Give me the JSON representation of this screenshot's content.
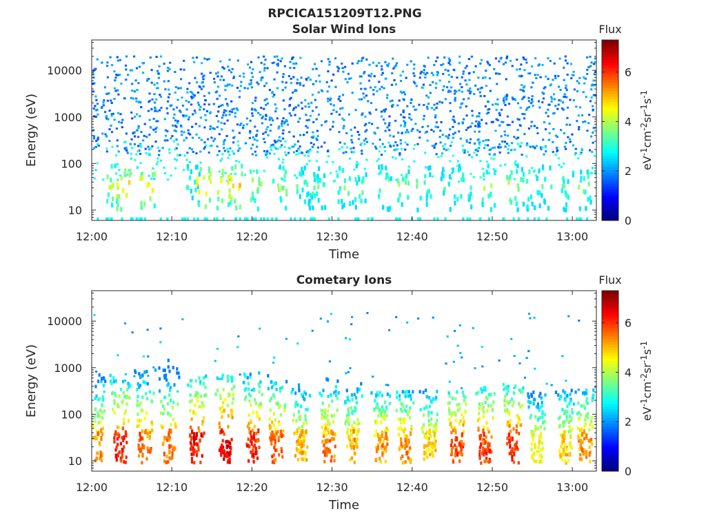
{
  "figure": {
    "title": "RPCICA151209T12.PNG"
  },
  "chart_data": [
    {
      "type": "heatmap",
      "title": "Solar Wind Ions",
      "xlabel": "Time",
      "ylabel": "Energy (eV)",
      "y_scale": "log",
      "ylim": [
        6,
        45000
      ],
      "xlim": [
        "12:00",
        "13:03"
      ],
      "x_ticks": [
        "12:00",
        "12:10",
        "12:20",
        "12:30",
        "12:40",
        "12:50",
        "13:00"
      ],
      "y_ticks": [
        "10",
        "100",
        "1000",
        "10000"
      ],
      "colorbar": {
        "title": "Flux",
        "label": "eV-1cm-2sr-1s-1",
        "range": [
          0,
          7.3
        ],
        "ticks": [
          "0",
          "2",
          "4",
          "6"
        ],
        "colormap": "jet"
      },
      "bursts_min": [
        2,
        3.5,
        6.5,
        12.3,
        13.5,
        16,
        17.5,
        20,
        23,
        26,
        27,
        28,
        31,
        33,
        36,
        38.5,
        41,
        44,
        46,
        49,
        52,
        54,
        56,
        59,
        61
      ],
      "burst_peak_flux": [
        4.5,
        5.3,
        5.0,
        3.5,
        5.2,
        5.0,
        5.3,
        4.6,
        4.2,
        3.8,
        3.6,
        3.9,
        4.0,
        3.8,
        4.0,
        4.3,
        3.8,
        3.7,
        3.8,
        4.3,
        4.5,
        4.2,
        3.5,
        3.9,
        4.0
      ],
      "background": "sparse blue noise between ~150 eV and ~20000 eV, flux ~1.5–2.5"
    },
    {
      "type": "heatmap",
      "title": "Cometary Ions",
      "xlabel": "Time",
      "ylabel": "Energy (eV)",
      "y_scale": "log",
      "ylim": [
        6,
        45000
      ],
      "xlim": [
        "12:00",
        "13:03"
      ],
      "x_ticks": [
        "12:00",
        "12:10",
        "12:20",
        "12:30",
        "12:40",
        "12:50",
        "13:00"
      ],
      "y_ticks": [
        "10",
        "100",
        "1000",
        "10000"
      ],
      "colorbar": {
        "title": "Flux",
        "label": "eV-1cm-2sr-1s-1",
        "range": [
          0,
          7.3
        ],
        "ticks": [
          "0",
          "2",
          "4",
          "6"
        ],
        "colormap": "jet"
      },
      "bursts_min": [
        0.5,
        3.5,
        6.5,
        9.5,
        13,
        16.5,
        20,
        23,
        26,
        29.5,
        32.5,
        36,
        39,
        42,
        45.5,
        49,
        52.5,
        55.5,
        59,
        61.5
      ],
      "burst_peak_flux": [
        5.8,
        6.6,
        6.2,
        6.0,
        6.8,
        7.0,
        6.6,
        6.2,
        5.5,
        6.0,
        5.6,
        5.8,
        5.8,
        5.4,
        6.3,
        6.4,
        6.5,
        5.0,
        5.3,
        5.8
      ],
      "burst_top_eV": [
        700,
        700,
        900,
        1500,
        700,
        700,
        800,
        700,
        500,
        600,
        450,
        300,
        330,
        330,
        300,
        400,
        450,
        300,
        330,
        350
      ],
      "background": "sparse isolated points up to ~15000 eV"
    }
  ]
}
